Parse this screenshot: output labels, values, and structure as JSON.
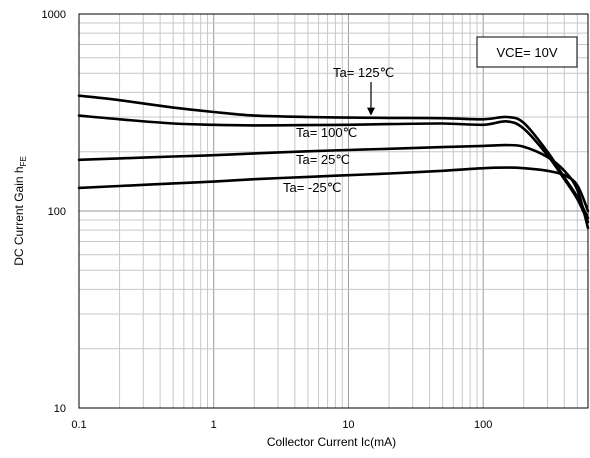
{
  "chart_data": {
    "type": "line",
    "x_scale": "log",
    "y_scale": "log",
    "xlim": [
      0.1,
      600
    ],
    "ylim": [
      10,
      1000
    ],
    "xlabel": "Collector Current  Ic(mA)",
    "ylabel": "DC Current Gain  h",
    "ylabel_sub": "FE",
    "x_ticks": [
      "0.1",
      "1",
      "10",
      "100"
    ],
    "y_ticks": [
      "10",
      "100",
      "1000"
    ],
    "x_tick_values": [
      0.1,
      1,
      10,
      100
    ],
    "y_tick_values": [
      10,
      100,
      1000
    ],
    "grid": true,
    "condition_label": "VCE= 10V",
    "series": [
      {
        "name": "Ta= 125℃",
        "x": [
          0.1,
          0.2,
          0.5,
          1,
          2,
          5,
          10,
          20,
          50,
          100,
          150,
          200,
          300,
          400,
          500,
          600
        ],
        "y": [
          385,
          365,
          335,
          318,
          305,
          300,
          298,
          297,
          296,
          292,
          300,
          280,
          200,
          148,
          118,
          92
        ]
      },
      {
        "name": "Ta= 100℃",
        "x": [
          0.1,
          0.2,
          0.5,
          1,
          2,
          5,
          10,
          20,
          50,
          100,
          150,
          200,
          300,
          400,
          500,
          600
        ],
        "y": [
          305,
          292,
          278,
          274,
          272,
          273,
          274,
          276,
          278,
          274,
          285,
          262,
          192,
          145,
          115,
          88
        ]
      },
      {
        "name": "Ta= 25℃",
        "x": [
          0.1,
          0.2,
          0.5,
          1,
          2,
          5,
          10,
          20,
          50,
          100,
          150,
          200,
          300,
          400,
          500,
          600
        ],
        "y": [
          182,
          185,
          189,
          192,
          196,
          201,
          204,
          207,
          211,
          214,
          216,
          212,
          188,
          160,
          128,
          82
        ]
      },
      {
        "name": "Ta= -25℃",
        "x": [
          0.1,
          0.2,
          0.5,
          1,
          2,
          5,
          10,
          20,
          50,
          100,
          150,
          200,
          300,
          400,
          500,
          600
        ],
        "y": [
          131,
          134,
          138,
          141,
          145,
          149,
          152,
          155,
          160,
          165,
          166,
          165,
          160,
          152,
          135,
          100
        ]
      }
    ]
  }
}
